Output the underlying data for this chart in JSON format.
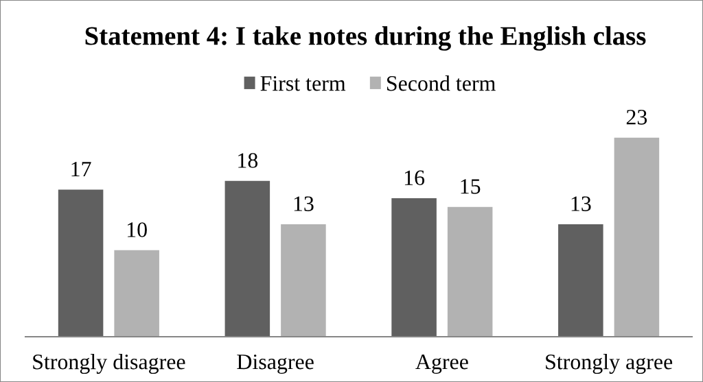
{
  "chart_data": {
    "type": "bar",
    "title": "Statement 4: I take notes during the English class",
    "categories": [
      "Strongly disagree",
      "Disagree",
      "Agree",
      "Strongly agree"
    ],
    "series": [
      {
        "name": "First term",
        "color": "#606060",
        "values": [
          17,
          18,
          16,
          13
        ]
      },
      {
        "name": "Second term",
        "color": "#b2b2b2",
        "values": [
          10,
          13,
          15,
          23
        ]
      }
    ],
    "data_labels": true,
    "legend": "top"
  }
}
